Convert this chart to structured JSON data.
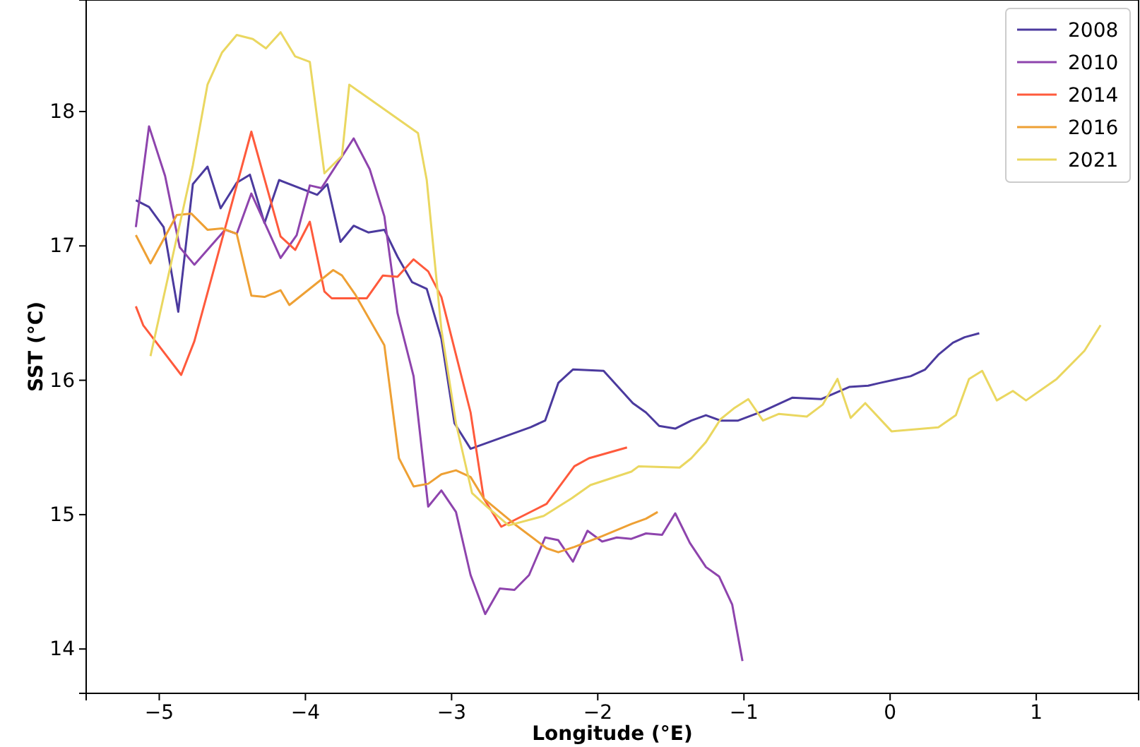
{
  "chart_data": {
    "type": "line",
    "xlabel": "Longitude (°E)",
    "ylabel": "SST (°C)",
    "xlim": [
      -5.5,
      1.7
    ],
    "ylim": [
      13.67,
      18.83
    ],
    "xticks": [
      {
        "value": -5,
        "label": "−5"
      },
      {
        "value": -4,
        "label": "−4"
      },
      {
        "value": -3,
        "label": "−3"
      },
      {
        "value": -2,
        "label": "−2"
      },
      {
        "value": -1,
        "label": "−1"
      },
      0,
      1
    ],
    "yticks": [
      14,
      15,
      16,
      17,
      18
    ],
    "grid": false,
    "legend": "top right",
    "marker": "none",
    "line_style": "solid",
    "series": [
      {
        "name": "2008",
        "color": "#4b3a9e",
        "x": [
          -5.16,
          -5.07,
          -4.97,
          -4.87,
          -4.77,
          -4.67,
          -4.58,
          -4.47,
          -4.38,
          -4.28,
          -4.18,
          -3.92,
          -3.85,
          -3.76,
          -3.67,
          -3.57,
          -3.46,
          -3.37,
          -3.27,
          -3.17,
          -3.07,
          -2.98,
          -2.87,
          -2.46,
          -2.36,
          -2.27,
          -2.17,
          -1.96,
          -1.76,
          -1.67,
          -1.58,
          -1.47,
          -1.36,
          -1.26,
          -1.16,
          -1.04,
          -0.87,
          -0.67,
          -0.47,
          -0.28,
          -0.15,
          -0.07,
          0.14,
          0.24,
          0.33,
          0.43,
          0.51,
          0.61
        ],
        "values": [
          17.34,
          17.29,
          17.14,
          16.51,
          17.46,
          17.59,
          17.28,
          17.47,
          17.53,
          17.17,
          17.49,
          17.38,
          17.46,
          17.03,
          17.15,
          17.1,
          17.12,
          16.92,
          16.73,
          16.68,
          16.31,
          15.68,
          15.49,
          15.65,
          15.7,
          15.98,
          16.08,
          16.07,
          15.83,
          15.76,
          15.66,
          15.64,
          15.7,
          15.74,
          15.7,
          15.7,
          15.77,
          15.87,
          15.86,
          15.95,
          15.96,
          15.98,
          16.03,
          16.08,
          16.19,
          16.28,
          16.32,
          16.35
        ]
      },
      {
        "name": "2010",
        "color": "#8e44ad",
        "x": [
          -5.16,
          -5.07,
          -4.96,
          -4.86,
          -4.76,
          -4.55,
          -4.47,
          -4.37,
          -4.27,
          -4.17,
          -4.06,
          -3.97,
          -3.89,
          -3.67,
          -3.56,
          -3.46,
          -3.37,
          -3.26,
          -3.16,
          -3.07,
          -2.97,
          -2.87,
          -2.77,
          -2.67,
          -2.57,
          -2.47,
          -2.36,
          -2.27,
          -2.17,
          -2.07,
          -1.97,
          -1.87,
          -1.77,
          -1.67,
          -1.56,
          -1.47,
          -1.37,
          -1.26,
          -1.17,
          -1.08,
          -1.01
        ],
        "values": [
          17.14,
          17.89,
          17.52,
          16.99,
          16.86,
          17.12,
          17.09,
          17.39,
          17.15,
          16.91,
          17.08,
          17.45,
          17.43,
          17.8,
          17.57,
          17.22,
          16.5,
          16.03,
          15.06,
          15.18,
          15.02,
          14.55,
          14.26,
          14.45,
          14.44,
          14.55,
          14.83,
          14.81,
          14.65,
          14.88,
          14.8,
          14.83,
          14.82,
          14.86,
          14.85,
          15.01,
          14.79,
          14.61,
          14.54,
          14.33,
          13.91
        ]
      },
      {
        "name": "2014",
        "color": "#ff5a3c",
        "x": [
          -5.16,
          -5.11,
          -4.85,
          -4.76,
          -4.37,
          -4.17,
          -4.07,
          -3.97,
          -3.87,
          -3.82,
          -3.58,
          -3.47,
          -3.37,
          -3.26,
          -3.16,
          -3.07,
          -2.87,
          -2.78,
          -2.66,
          -2.35,
          -2.16,
          -2.06,
          -1.8
        ],
        "values": [
          16.55,
          16.41,
          16.04,
          16.29,
          17.85,
          17.07,
          16.97,
          17.18,
          16.66,
          16.61,
          16.61,
          16.78,
          16.77,
          16.9,
          16.81,
          16.62,
          15.76,
          15.12,
          14.91,
          15.08,
          15.36,
          15.42,
          15.5
        ]
      },
      {
        "name": "2016",
        "color": "#eea034",
        "x": [
          -5.16,
          -5.06,
          -4.88,
          -4.78,
          -4.67,
          -4.57,
          -4.47,
          -4.37,
          -4.28,
          -4.17,
          -4.11,
          -3.81,
          -3.75,
          -3.66,
          -3.46,
          -3.36,
          -3.26,
          -3.16,
          -3.07,
          -2.97,
          -2.87,
          -2.78,
          -2.57,
          -2.35,
          -2.27,
          -2.16,
          -1.97,
          -1.77,
          -1.67,
          -1.59
        ],
        "values": [
          17.08,
          16.87,
          17.23,
          17.24,
          17.12,
          17.13,
          17.09,
          16.63,
          16.62,
          16.67,
          16.56,
          16.82,
          16.78,
          16.64,
          16.26,
          15.42,
          15.21,
          15.23,
          15.3,
          15.33,
          15.28,
          15.12,
          14.93,
          14.75,
          14.72,
          14.76,
          14.84,
          14.93,
          14.97,
          15.02
        ]
      },
      {
        "name": "2021",
        "color": "#ead760",
        "x": [
          -5.06,
          -4.77,
          -4.67,
          -4.57,
          -4.47,
          -4.36,
          -4.27,
          -4.17,
          -4.07,
          -3.97,
          -3.87,
          -3.75,
          -3.7,
          -3.23,
          -3.17,
          -3.07,
          -2.97,
          -2.86,
          -2.76,
          -2.61,
          -2.37,
          -2.18,
          -2.05,
          -1.77,
          -1.72,
          -1.44,
          -1.36,
          -1.26,
          -1.16,
          -1.07,
          -0.97,
          -0.87,
          -0.76,
          -0.57,
          -0.46,
          -0.36,
          -0.27,
          -0.17,
          0.01,
          0.33,
          0.45,
          0.54,
          0.63,
          0.73,
          0.84,
          0.93,
          1.14,
          1.33,
          1.44
        ],
        "values": [
          16.18,
          17.6,
          18.2,
          18.44,
          18.57,
          18.54,
          18.47,
          18.59,
          18.41,
          18.37,
          17.54,
          17.67,
          18.2,
          17.84,
          17.49,
          16.38,
          15.68,
          15.16,
          15.06,
          14.92,
          14.99,
          15.12,
          15.22,
          15.32,
          15.36,
          15.35,
          15.42,
          15.54,
          15.71,
          15.79,
          15.86,
          15.7,
          15.75,
          15.73,
          15.82,
          16.01,
          15.72,
          15.83,
          15.62,
          15.65,
          15.74,
          16.01,
          16.07,
          15.85,
          15.92,
          15.85,
          16.01,
          16.22,
          16.41
        ]
      }
    ]
  }
}
